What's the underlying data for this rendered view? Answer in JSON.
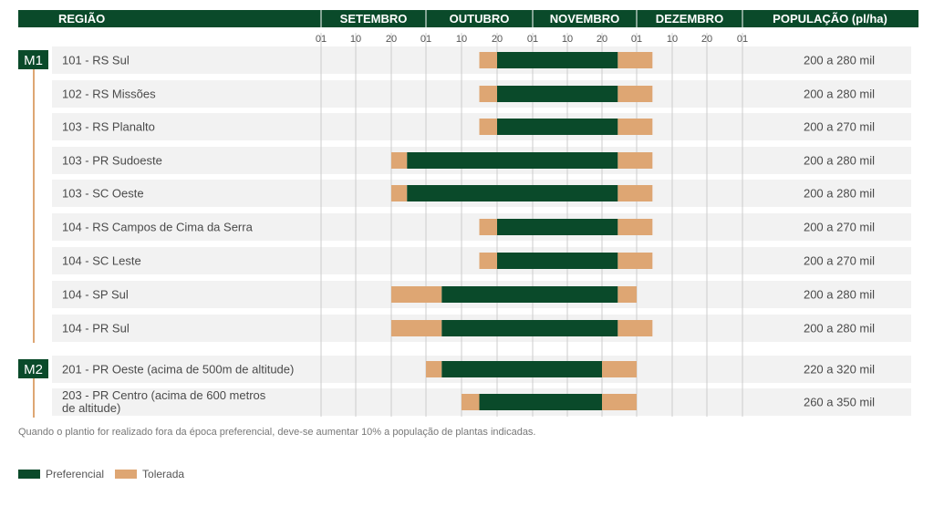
{
  "chart_data": {
    "type": "gantt",
    "header": {
      "region_label": "REGIÃO",
      "months": [
        "SETEMBRO",
        "OUTUBRO",
        "NOVEMBRO",
        "DEZEMBRO"
      ],
      "population_label": "POPULAÇÃO (pl/ha)"
    },
    "ticks": [
      "01",
      "10",
      "20",
      "01",
      "10",
      "20",
      "01",
      "10",
      "20",
      "01",
      "10",
      "20",
      "01"
    ],
    "groups": [
      {
        "label": "M1",
        "rows": [
          {
            "region": "101 - RS Sul",
            "tol_start": "Oct 15",
            "pref_start": "Oct 20",
            "pref_end": "Nov 25",
            "tol_end": "Dec 05",
            "population": "200 a 280 mil"
          },
          {
            "region": "102 - RS Missões",
            "tol_start": "Oct 15",
            "pref_start": "Oct 20",
            "pref_end": "Nov 25",
            "tol_end": "Dec 05",
            "population": "200 a 280 mil"
          },
          {
            "region": "103 - RS Planalto",
            "tol_start": "Oct 15",
            "pref_start": "Oct 20",
            "pref_end": "Nov 25",
            "tol_end": "Dec 05",
            "population": "200 a 270 mil"
          },
          {
            "region": "103 - PR Sudoeste",
            "tol_start": "Sep 20",
            "pref_start": "Sep 25",
            "pref_end": "Nov 25",
            "tol_end": "Dec 05",
            "population": "200 a 280 mil"
          },
          {
            "region": "103 - SC Oeste",
            "tol_start": "Sep 20",
            "pref_start": "Sep 25",
            "pref_end": "Nov 25",
            "tol_end": "Dec 05",
            "population": "200 a 280 mil"
          },
          {
            "region": "104 - RS Campos de Cima da Serra",
            "tol_start": "Oct 15",
            "pref_start": "Oct 20",
            "pref_end": "Nov 25",
            "tol_end": "Dec 05",
            "population": "200 a 270 mil"
          },
          {
            "region": "104 - SC Leste",
            "tol_start": "Oct 15",
            "pref_start": "Oct 20",
            "pref_end": "Nov 25",
            "tol_end": "Dec 05",
            "population": "200 a 270 mil"
          },
          {
            "region": "104 - SP Sul",
            "tol_start": "Sep 20",
            "pref_start": "Oct 05",
            "pref_end": "Nov 25",
            "tol_end": "Dec 01",
            "population": "200 a 280 mil"
          },
          {
            "region": "104 - PR Sul",
            "tol_start": "Sep 20",
            "pref_start": "Oct 05",
            "pref_end": "Nov 25",
            "tol_end": "Dec 05",
            "population": "200 a 280 mil"
          }
        ]
      },
      {
        "label": "M2",
        "rows": [
          {
            "region": "201 - PR Oeste (acima de 500m de altitude)",
            "tol_start": "Oct 01",
            "pref_start": "Oct 05",
            "pref_end": "Nov 20",
            "tol_end": "Dec 01",
            "population": "220 a 320 mil"
          },
          {
            "region": "203 - PR Centro (acima de 600 metros de altitude)",
            "region_lines": [
              "203 - PR Centro (acima de 600 metros",
              "de altitude)"
            ],
            "tol_start": "Oct 10",
            "pref_start": "Oct 15",
            "pref_end": "Nov 20",
            "tol_end": "Dec 01",
            "population": "260 a 350 mil"
          }
        ]
      }
    ],
    "note": "Quando o plantio for realizado fora da época preferencial, deve-se aumentar 10% a população de plantas indicadas.",
    "legend": [
      {
        "label": "Preferencial",
        "color": "#0a4a2a"
      },
      {
        "label": "Tolerada",
        "color": "#dea673"
      }
    ],
    "colors": {
      "header": "#0a4a2a",
      "row_bg": "#f2f2f2",
      "grid": "#cccccc",
      "group_line": "#dea673"
    }
  }
}
